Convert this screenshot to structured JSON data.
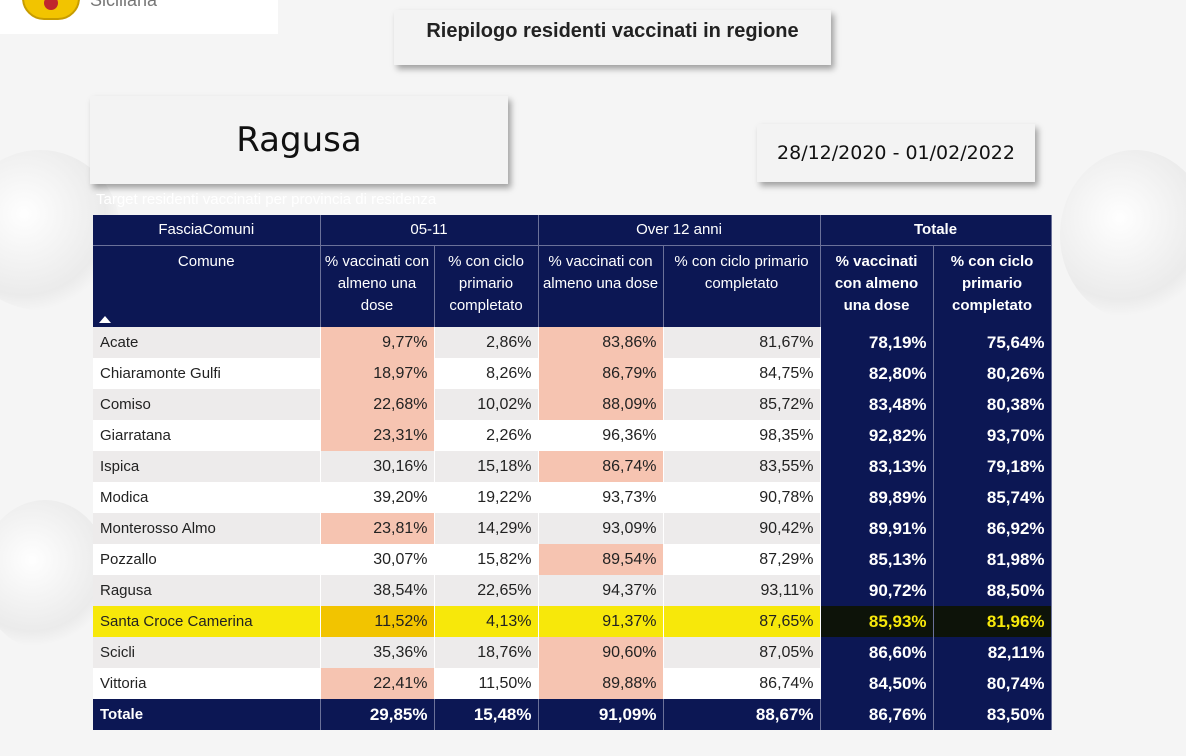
{
  "header": {
    "logo_text": "Siciliana",
    "title": "Riepilogo residenti vaccinati in regione",
    "province": "Ragusa",
    "date_range": "28/12/2020 - 01/02/2022",
    "subtitle": "Target residenti vaccinati per provincia di residenza"
  },
  "table": {
    "group_headers": {
      "fascia": "FasciaComuni",
      "g1": "05-11",
      "g2": "Over 12 anni",
      "g3": "Totale"
    },
    "col_headers": {
      "comune": "Comune",
      "c1": "% vaccinati con almeno una dose",
      "c2": "% con ciclo primario completato",
      "c3": "% vaccinati con almeno una dose",
      "c4": "% con ciclo primario completato",
      "c5": "% vaccinati con almeno una dose",
      "c6": "% con ciclo primario completato"
    },
    "rows": [
      {
        "comune": "Acate",
        "v1": "9,77%",
        "v2": "2,86%",
        "v3": "83,86%",
        "v4": "81,67%",
        "v5": "78,19%",
        "v6": "75,64%"
      },
      {
        "comune": "Chiaramonte Gulfi",
        "v1": "18,97%",
        "v2": "8,26%",
        "v3": "86,79%",
        "v4": "84,75%",
        "v5": "82,80%",
        "v6": "80,26%"
      },
      {
        "comune": "Comiso",
        "v1": "22,68%",
        "v2": "10,02%",
        "v3": "88,09%",
        "v4": "85,72%",
        "v5": "83,48%",
        "v6": "80,38%"
      },
      {
        "comune": "Giarratana",
        "v1": "23,31%",
        "v2": "2,26%",
        "v3": "96,36%",
        "v4": "98,35%",
        "v5": "92,82%",
        "v6": "93,70%"
      },
      {
        "comune": "Ispica",
        "v1": "30,16%",
        "v2": "15,18%",
        "v3": "86,74%",
        "v4": "83,55%",
        "v5": "83,13%",
        "v6": "79,18%"
      },
      {
        "comune": "Modica",
        "v1": "39,20%",
        "v2": "19,22%",
        "v3": "93,73%",
        "v4": "90,78%",
        "v5": "89,89%",
        "v6": "85,74%"
      },
      {
        "comune": "Monterosso Almo",
        "v1": "23,81%",
        "v2": "14,29%",
        "v3": "93,09%",
        "v4": "90,42%",
        "v5": "89,91%",
        "v6": "86,92%"
      },
      {
        "comune": "Pozzallo",
        "v1": "30,07%",
        "v2": "15,82%",
        "v3": "89,54%",
        "v4": "87,29%",
        "v5": "85,13%",
        "v6": "81,98%"
      },
      {
        "comune": "Ragusa",
        "v1": "38,54%",
        "v2": "22,65%",
        "v3": "94,37%",
        "v4": "93,11%",
        "v5": "90,72%",
        "v6": "88,50%"
      },
      {
        "comune": "Santa Croce Camerina",
        "v1": "11,52%",
        "v2": "4,13%",
        "v3": "91,37%",
        "v4": "87,65%",
        "v5": "85,93%",
        "v6": "81,96%"
      },
      {
        "comune": "Scicli",
        "v1": "35,36%",
        "v2": "18,76%",
        "v3": "90,60%",
        "v4": "87,05%",
        "v5": "86,60%",
        "v6": "82,11%"
      },
      {
        "comune": "Vittoria",
        "v1": "22,41%",
        "v2": "11,50%",
        "v3": "89,88%",
        "v4": "86,74%",
        "v5": "84,50%",
        "v6": "80,74%"
      }
    ],
    "totals": {
      "label": "Totale",
      "v1": "29,85%",
      "v2": "15,48%",
      "v3": "91,09%",
      "v4": "88,67%",
      "v5": "86,76%",
      "v6": "83,50%"
    }
  },
  "colors": {
    "header_navy": "#0c1754",
    "highlight_salmon": "#f6c4b1",
    "row_selected_yellow": "#f7e80a"
  }
}
